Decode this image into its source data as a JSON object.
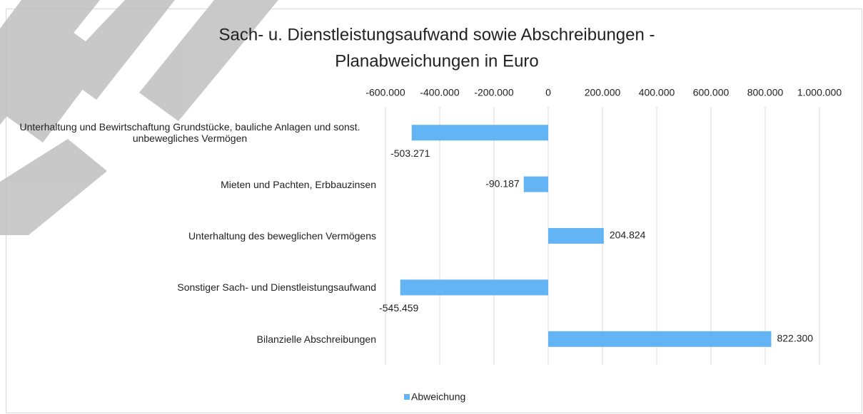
{
  "chart_data": {
    "type": "barh",
    "title": [
      "Sach- u. Dienstleistungsaufwand sowie Abschreibungen -",
      "Planabweichungen in Euro"
    ],
    "categories": [
      "Unterhaltung und Bewirtschaftung Grundstücke, bauliche Anlagen und sonst. unbewegliches Vermögen",
      "Mieten und Pachten, Erbbauzinsen",
      "Unterhaltung des beweglichen Vermögens",
      "Sonstiger Sach- und Dienstleistungsaufwand",
      "Bilanzielle Abschreibungen"
    ],
    "series": [
      {
        "name": "Abweichung",
        "color": "#63b4f4",
        "values": [
          -503271,
          -90187,
          204824,
          -545459,
          822300
        ],
        "value_labels": [
          "-503.271",
          "-90.187",
          "204.824",
          "-545.459",
          "822.300"
        ]
      }
    ],
    "xlim": [
      -600000,
      1000000
    ],
    "xticks": [
      {
        "value": -600000,
        "label": "-600.000"
      },
      {
        "value": -400000,
        "label": "-400.000"
      },
      {
        "value": -200000,
        "label": "-200.000"
      },
      0,
      {
        "value": 200000,
        "label": "200.000"
      },
      {
        "value": 400000,
        "label": "400.000"
      },
      {
        "value": 600000,
        "label": "600.000"
      },
      {
        "value": 800000,
        "label": "800.000"
      },
      {
        "value": 1000000,
        "label": "1.000.000"
      }
    ],
    "grid": true,
    "legend": "bottom"
  }
}
